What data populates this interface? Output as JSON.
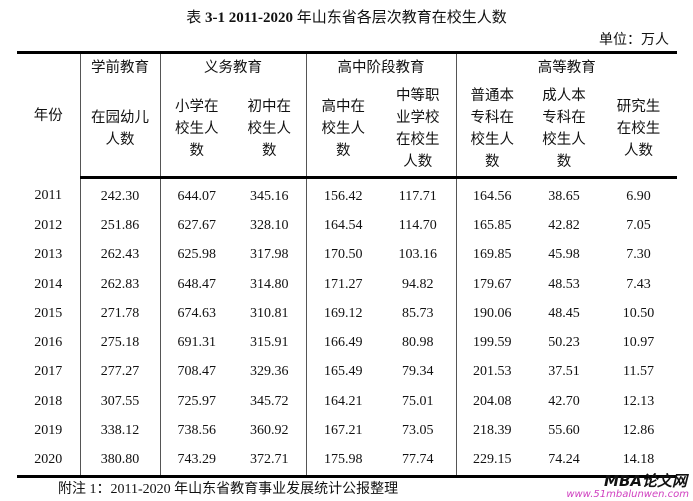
{
  "title": {
    "prefix": "表 ",
    "number": "3-1 2011-2020",
    "text": " 年山东省各层次教育在校生人数"
  },
  "unit": "单位：万人",
  "header": {
    "year": "年份",
    "groups": [
      "学前教育",
      "义务教育",
      "高中阶段教育",
      "高等教育"
    ],
    "columns": [
      "在园幼儿\n人数",
      "小学在\n校生人\n数",
      "初中在\n校生人\n数",
      "高中在\n校生人\n数",
      "中等职\n业学校\n在校生\n人数",
      "普通本\n专科在\n校生人\n数",
      "成人本\n专科在\n校生人\n数",
      "研究生\n在校生\n人数"
    ]
  },
  "rows": [
    [
      "2011",
      "242.30",
      "644.07",
      "345.16",
      "156.42",
      "117.71",
      "164.56",
      "38.65",
      "6.90"
    ],
    [
      "2012",
      "251.86",
      "627.67",
      "328.10",
      "164.54",
      "114.70",
      "165.85",
      "42.82",
      "7.05"
    ],
    [
      "2013",
      "262.43",
      "625.98",
      "317.98",
      "170.50",
      "103.16",
      "169.85",
      "45.98",
      "7.30"
    ],
    [
      "2014",
      "262.83",
      "648.47",
      "314.80",
      "171.27",
      "94.82",
      "179.67",
      "48.53",
      "7.43"
    ],
    [
      "2015",
      "271.78",
      "674.63",
      "310.81",
      "169.12",
      "85.73",
      "190.06",
      "48.45",
      "10.50"
    ],
    [
      "2016",
      "275.18",
      "691.31",
      "315.91",
      "166.49",
      "80.98",
      "199.59",
      "50.23",
      "10.97"
    ],
    [
      "2017",
      "277.27",
      "708.47",
      "329.36",
      "165.49",
      "79.34",
      "201.53",
      "37.51",
      "11.57"
    ],
    [
      "2018",
      "307.55",
      "725.97",
      "345.72",
      "164.21",
      "75.01",
      "204.08",
      "42.70",
      "12.13"
    ],
    [
      "2019",
      "338.12",
      "738.56",
      "360.92",
      "167.21",
      "73.05",
      "218.39",
      "55.60",
      "12.86"
    ],
    [
      "2020",
      "380.80",
      "743.29",
      "372.71",
      "175.98",
      "77.74",
      "229.15",
      "74.24",
      "14.18"
    ]
  ],
  "note": "附注 1：2011-2020 年山东省教育事业发展统计公报整理",
  "watermark": {
    "logo": "MBA论文网",
    "url": "www.51mbalunwen.com"
  }
}
